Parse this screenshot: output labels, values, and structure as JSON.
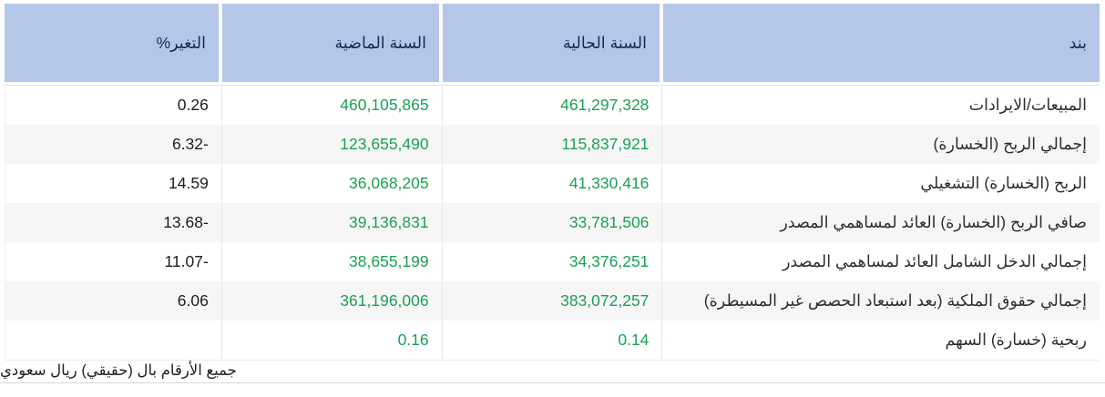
{
  "table": {
    "columns": [
      {
        "key": "item",
        "label": "بند"
      },
      {
        "key": "current_year",
        "label": "السنة الحالية"
      },
      {
        "key": "previous_year",
        "label": "السنة الماضية"
      },
      {
        "key": "change_pct",
        "label": "التغير%"
      }
    ],
    "rows": [
      {
        "item": "المبيعات/الايرادات",
        "current_year": "461,297,328",
        "previous_year": "460,105,865",
        "change_pct": "0.26"
      },
      {
        "item": "إجمالي الربح (الخسارة)",
        "current_year": "115,837,921",
        "previous_year": "123,655,490",
        "change_pct": "-6.32"
      },
      {
        "item": "الربح (الخسارة) التشغيلي",
        "current_year": "41,330,416",
        "previous_year": "36,068,205",
        "change_pct": "14.59"
      },
      {
        "item": "صافي الربح (الخسارة) العائد لمساهمي المصدر",
        "current_year": "33,781,506",
        "previous_year": "39,136,831",
        "change_pct": "-13.68"
      },
      {
        "item": "إجمالي الدخل الشامل العائد لمساهمي المصدر",
        "current_year": "34,376,251",
        "previous_year": "38,655,199",
        "change_pct": "-11.07"
      },
      {
        "item": "إجمالي حقوق الملكية (بعد استبعاد الحصص غير المسيطرة)",
        "current_year": "383,072,257",
        "previous_year": "361,196,006",
        "change_pct": "6.06"
      },
      {
        "item": "ربحية (خسارة) السهم",
        "current_year": "0.14",
        "previous_year": "0.16",
        "change_pct": ""
      }
    ]
  },
  "footer": {
    "note": "جميع الأرقام بال (حقيقي) ريال سعودي"
  },
  "colors": {
    "header_bg": "#b5c7e8",
    "header_text": "#16294f",
    "value_green": "#1ba153",
    "change_text": "#1e1e1e",
    "row_alt_bg": "#f6f6f6"
  }
}
